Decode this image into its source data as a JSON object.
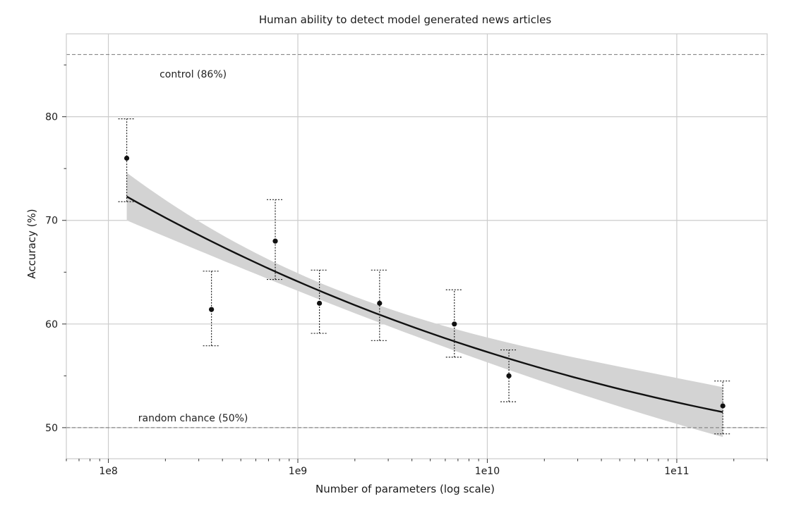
{
  "chart_data": {
    "type": "scatter",
    "title": "Human ability to detect model generated news articles",
    "xlabel": "Number of parameters (log scale)",
    "ylabel": "Accuracy (%)",
    "x_scale": "log",
    "xlim": [
      60000000,
      300000000000
    ],
    "ylim": [
      47,
      88
    ],
    "x_ticks": [
      {
        "value": 100000000,
        "label": "1e8"
      },
      {
        "value": 1000000000,
        "label": "1e9"
      },
      {
        "value": 10000000000,
        "label": "1e10"
      },
      {
        "value": 100000000000,
        "label": "1e11"
      }
    ],
    "y_ticks": [
      {
        "value": 50,
        "label": "50"
      },
      {
        "value": 60,
        "label": "60"
      },
      {
        "value": 70,
        "label": "70"
      },
      {
        "value": 80,
        "label": "80"
      }
    ],
    "grid": true,
    "points": [
      {
        "x": 125000000,
        "y": 76.0,
        "low": 71.8,
        "high": 79.8
      },
      {
        "x": 350000000,
        "y": 61.4,
        "low": 57.9,
        "high": 65.1
      },
      {
        "x": 760000000,
        "y": 68.0,
        "low": 64.3,
        "high": 72.0
      },
      {
        "x": 1300000000,
        "y": 62.0,
        "low": 59.1,
        "high": 65.2
      },
      {
        "x": 2700000000,
        "y": 62.0,
        "low": 58.4,
        "high": 65.2
      },
      {
        "x": 6700000000,
        "y": 60.0,
        "low": 56.8,
        "high": 63.3
      },
      {
        "x": 13000000000,
        "y": 55.0,
        "low": 52.5,
        "high": 57.5
      },
      {
        "x": 175000000000,
        "y": 52.1,
        "low": 49.4,
        "high": 54.5
      }
    ],
    "trend": {
      "x": [
        125000000,
        1000000000,
        10000000000,
        175000000000
      ],
      "y": [
        72.3,
        64.1,
        57.3,
        51.5
      ],
      "band_low": [
        70.0,
        63.2,
        56.3,
        49.1
      ],
      "band_high": [
        74.6,
        64.9,
        58.7,
        53.9
      ]
    },
    "reference_lines": [
      {
        "y": 86,
        "label": "control (86%)",
        "label_x": 280000000,
        "label_y": 83.8
      },
      {
        "y": 50,
        "label": "random chance (50%)",
        "label_x": 280000000,
        "label_y": 50.6
      }
    ],
    "colors": {
      "points": "#111111",
      "trend": "#111111",
      "band": "#d3d3d3",
      "grid": "#cccccc",
      "reference": "#888888",
      "frame": "#cccccc"
    }
  }
}
